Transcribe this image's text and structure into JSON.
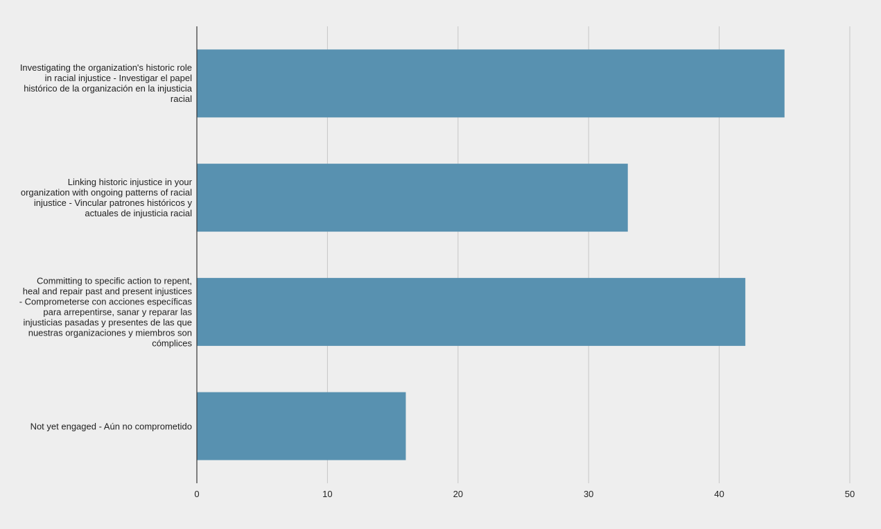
{
  "chart_data": {
    "type": "bar",
    "orientation": "horizontal",
    "title": "",
    "xlabel": "",
    "ylabel": "",
    "categories": [
      "Investigating the organization's historic role in racial injustice - Investigar el papel histórico de la organización en la injusticia racial",
      "Linking historic injustice in your organization with ongoing patterns of racial injustice - Vincular patrones históricos y actuales de injusticia racial",
      "Committing to specific action to repent, heal and repair past and present injustices - Comprometerse con acciones específicas para arrepentirse, sanar y reparar las injusticias pasadas y presentes de las que nuestras organizaciones y miembros son cómplices",
      "Not yet engaged - Aún no comprometido"
    ],
    "values": [
      45,
      33,
      42,
      16
    ],
    "xlim": [
      0,
      50
    ],
    "xticks": [
      "0",
      "10",
      "20",
      "30",
      "40",
      "50"
    ],
    "grid": true,
    "legend": "none",
    "colors": {
      "bar": "#5891b0",
      "grid": "#c6c6c6",
      "axis": "#333333",
      "background": "#eeeeee",
      "text": "#222222"
    }
  }
}
